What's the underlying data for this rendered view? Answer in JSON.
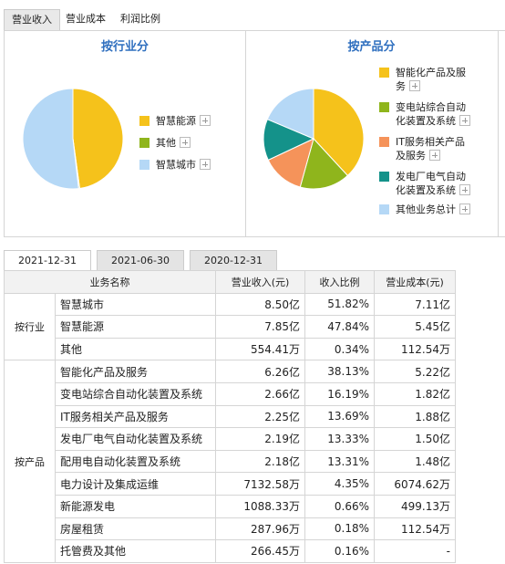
{
  "tabs": [
    "营业收入",
    "营业成本",
    "利润比例"
  ],
  "panels": [
    {
      "type": "pie",
      "title": "按行业分",
      "items": [
        {
          "label": "智慧能源",
          "color": "#f5c21b",
          "value": 47.84
        },
        {
          "label": "其他",
          "color": "#8fb51c",
          "value": 0.34
        },
        {
          "label": "智慧城市",
          "color": "#b5d8f6",
          "value": 51.82
        }
      ]
    },
    {
      "type": "pie",
      "title": "按产品分",
      "items": [
        {
          "label": "智能化产品及服务",
          "color": "#f5c21b",
          "value": 38.13
        },
        {
          "label": "变电站综合自动化装置及系统",
          "color": "#8fb51c",
          "value": 16.19
        },
        {
          "label": "IT服务相关产品及服务",
          "color": "#f5935a",
          "value": 13.69
        },
        {
          "label": "发电厂电气自动化装置及系统",
          "color": "#14928a",
          "value": 13.33
        },
        {
          "label": "其他业务总计",
          "color": "#b5d8f6",
          "value": 18.66
        }
      ]
    }
  ],
  "date_tabs": [
    "2021-12-31",
    "2021-06-30",
    "2020-12-31"
  ],
  "table": {
    "columns": [
      "业务名称",
      "营业收入(元)",
      "收入比例",
      "营业成本(元)"
    ],
    "groups": [
      {
        "name": "按行业",
        "rows": [
          [
            "智慧城市",
            "8.50亿",
            "51.82%",
            "7.11亿"
          ],
          [
            "智慧能源",
            "7.85亿",
            "47.84%",
            "5.45亿"
          ],
          [
            "其他",
            "554.41万",
            "0.34%",
            "112.54万"
          ]
        ]
      },
      {
        "name": "按产品",
        "rows": [
          [
            "智能化产品及服务",
            "6.26亿",
            "38.13%",
            "5.22亿"
          ],
          [
            "变电站综合自动化装置及系统",
            "2.66亿",
            "16.19%",
            "1.82亿"
          ],
          [
            "IT服务相关产品及服务",
            "2.25亿",
            "13.69%",
            "1.88亿"
          ],
          [
            "发电厂电气自动化装置及系统",
            "2.19亿",
            "13.33%",
            "1.50亿"
          ],
          [
            "配用电自动化装置及系统",
            "2.18亿",
            "13.31%",
            "1.48亿"
          ],
          [
            "电力设计及集成运维",
            "7132.58万",
            "4.35%",
            "6074.62万"
          ],
          [
            "新能源发电",
            "1088.33万",
            "0.66%",
            "499.13万"
          ],
          [
            "房屋租赁",
            "287.96万",
            "0.18%",
            "112.54万"
          ],
          [
            "托管费及其他",
            "266.45万",
            "0.16%",
            "-"
          ]
        ]
      }
    ]
  }
}
